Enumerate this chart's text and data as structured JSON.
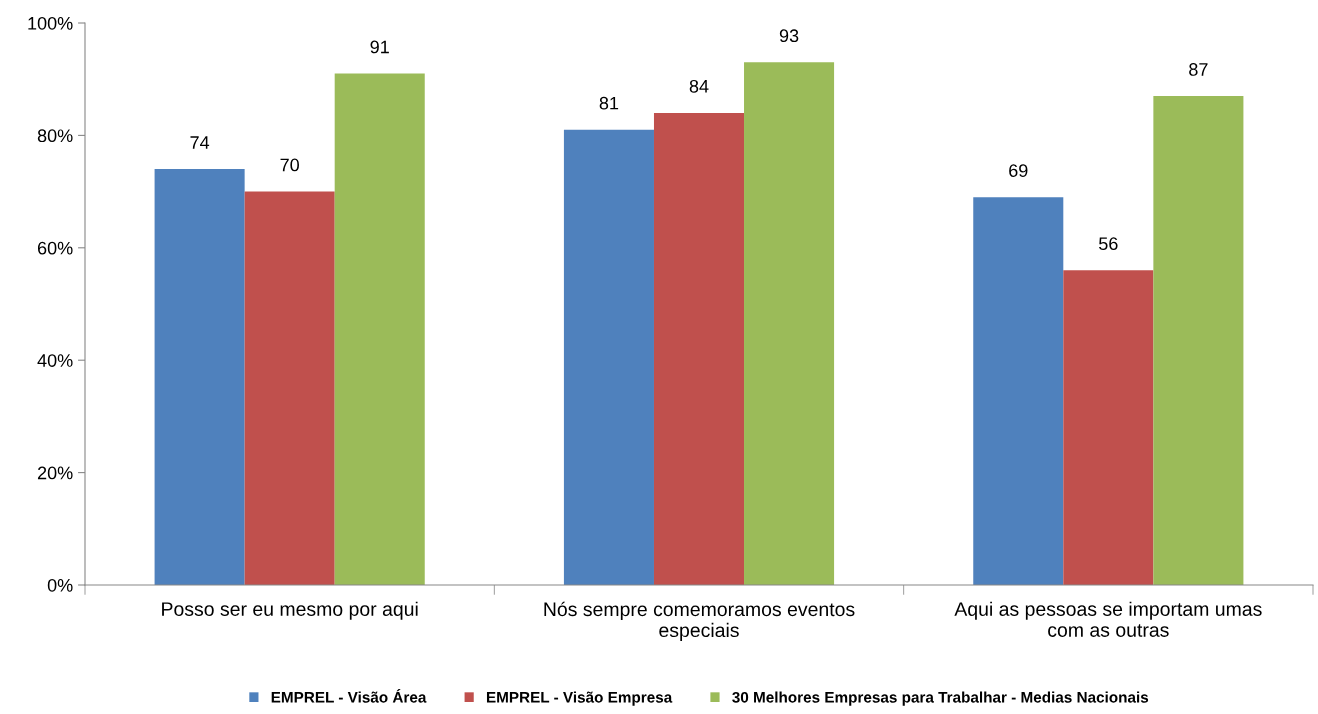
{
  "chart_data": {
    "type": "bar",
    "categories": [
      "Posso ser eu mesmo por aqui",
      "Nós sempre comemoramos eventos\nespeciais",
      "Aqui as pessoas se importam umas\ncom as outras"
    ],
    "series": [
      {
        "name": "EMPREL - Visão Área",
        "color": "#4f81bd",
        "values": [
          74,
          81,
          69
        ]
      },
      {
        "name": "EMPREL - Visão Empresa",
        "color": "#c0504d",
        "values": [
          70,
          84,
          56
        ]
      },
      {
        "name": "30 Melhores Empresas para Trabalhar - Medias Nacionais",
        "color": "#9bbb59",
        "values": [
          91,
          93,
          87
        ]
      }
    ],
    "ylim": [
      0,
      100
    ],
    "yticks": [
      {
        "value": 0,
        "label": "0%"
      },
      {
        "value": 20,
        "label": "20%"
      },
      {
        "value": 40,
        "label": "40%"
      },
      {
        "value": 60,
        "label": "60%"
      },
      {
        "value": 80,
        "label": "80%"
      },
      {
        "value": 100,
        "label": "100%"
      }
    ],
    "data_labels": true,
    "grid": false,
    "legend": "bottom"
  }
}
